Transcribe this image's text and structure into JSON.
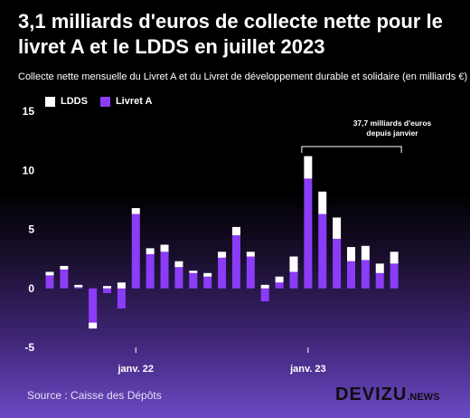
{
  "header": {
    "title": "3,1 milliards d'euros de collecte nette pour le livret A et le LDDS en juillet 2023",
    "subtitle": "Collecte nette mensuelle du Livret A et du Livret de développement durable et solidaire (en milliards €)"
  },
  "footer": {
    "source": "Source : Caisse des Dépôts",
    "logo_main": "DEVIZU",
    "logo_suffix": ".NEWS"
  },
  "colors": {
    "ldds": "#ffffff",
    "livret_a": "#8b3cf7",
    "axis_text": "#ffffff"
  },
  "chart_data": {
    "type": "bar",
    "stacked": true,
    "categories": [
      "2021-07",
      "2021-08",
      "2021-09",
      "2021-10",
      "2021-11",
      "2021-12",
      "2022-01",
      "2022-02",
      "2022-03",
      "2022-04",
      "2022-05",
      "2022-06",
      "2022-07",
      "2022-08",
      "2022-09",
      "2022-10",
      "2022-11",
      "2022-12",
      "2023-01",
      "2023-02",
      "2023-03",
      "2023-04",
      "2023-05",
      "2023-06",
      "2023-07"
    ],
    "series": [
      {
        "name": "Livret A",
        "color": "#8b3cf7",
        "values": [
          1.1,
          1.6,
          0.1,
          -2.9,
          -0.4,
          -1.7,
          6.3,
          2.9,
          3.1,
          1.8,
          1.3,
          1.0,
          2.6,
          4.5,
          2.7,
          -1.1,
          0.5,
          1.4,
          9.3,
          6.3,
          4.2,
          2.3,
          2.4,
          1.3,
          2.1
        ]
      },
      {
        "name": "LDDS",
        "color": "#ffffff",
        "values": [
          0.3,
          0.3,
          0.2,
          -0.5,
          0.2,
          0.5,
          0.5,
          0.5,
          0.6,
          0.5,
          0.2,
          0.3,
          0.5,
          0.7,
          0.4,
          0.3,
          0.5,
          1.3,
          1.9,
          1.9,
          1.8,
          1.2,
          1.2,
          0.8,
          1.0
        ]
      }
    ],
    "ylim": [
      -5,
      15
    ],
    "y_ticks": [
      -5,
      0,
      5,
      10,
      15
    ],
    "x_tick_labels": [
      {
        "label": "janv. 22",
        "category": "2022-01"
      },
      {
        "label": "janv. 23",
        "category": "2023-01"
      }
    ],
    "legend": {
      "placement": "top-left",
      "entries": [
        "LDDS",
        "Livret A"
      ]
    },
    "annotation": {
      "text_line1": "37,7 milliards d'euros",
      "text_line2": "depuis janvier",
      "from": "2023-01",
      "to": "2023-07"
    },
    "grid": false
  }
}
